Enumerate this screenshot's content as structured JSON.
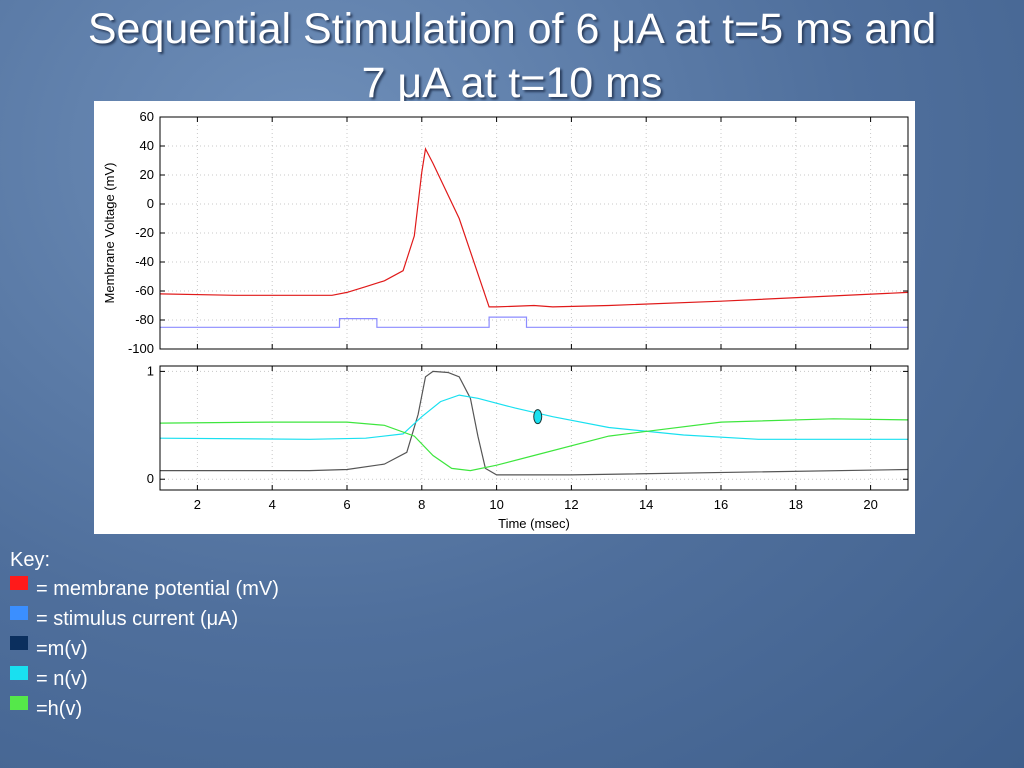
{
  "title": {
    "line1": "Sequential Stimulation of 6 μA at t=5 ms and",
    "line2": "7 μA at t=10 ms"
  },
  "key": {
    "heading": "Key:",
    "items": [
      {
        "label": "= membrane potential (mV)",
        "color": "#ff1a1a"
      },
      {
        "label": "= stimulus current (μA)",
        "color": "#3b8fff"
      },
      {
        "label": "=m(v)",
        "color": "#0b2f5e"
      },
      {
        "label": "= n(v)",
        "color": "#19e0f0"
      },
      {
        "label": "=h(v)",
        "color": "#55e84a"
      }
    ]
  },
  "chart_data": [
    {
      "type": "line",
      "ylabel": "Membrane Voltage (mV)",
      "xlim": [
        1,
        21
      ],
      "ylim": [
        -100,
        60
      ],
      "yticks": [
        60,
        40,
        20,
        0,
        -20,
        -40,
        -60,
        -80,
        -100
      ],
      "grid": true,
      "series": [
        {
          "color": "#e01a1a",
          "x": [
            1,
            3,
            5.6,
            6,
            6.5,
            7,
            7.5,
            7.8,
            8.0,
            8.1,
            8.3,
            9.0,
            9.8,
            10.0,
            11.0,
            11.5,
            13,
            16,
            21
          ],
          "y": [
            -62,
            -63,
            -63,
            -61,
            -57,
            -53,
            -46,
            -22,
            22,
            38,
            28,
            -10,
            -71,
            -71,
            -70,
            -71,
            -70,
            -67,
            -61
          ]
        },
        {
          "color": "#8c8cff",
          "x": [
            1,
            5.8,
            5.8,
            6.8,
            6.8,
            9.8,
            9.8,
            10.8,
            10.8,
            21
          ],
          "y": [
            -85,
            -85,
            -79,
            -79,
            -85,
            -85,
            -78,
            -78,
            -85,
            -85
          ]
        }
      ]
    },
    {
      "type": "line",
      "xlabel": "Time (msec)",
      "xlim": [
        1,
        21
      ],
      "ylim": [
        -0.1,
        1.05
      ],
      "xticks": [
        2,
        4,
        6,
        8,
        10,
        12,
        14,
        16,
        18,
        20
      ],
      "yticks": [
        1,
        0
      ],
      "grid": true,
      "series": [
        {
          "color": "#555555",
          "x": [
            1,
            5,
            6,
            7,
            7.6,
            7.9,
            8.1,
            8.3,
            8.7,
            9.0,
            9.3,
            9.5,
            9.7,
            10,
            12,
            21
          ],
          "y": [
            0.08,
            0.08,
            0.09,
            0.14,
            0.25,
            0.6,
            0.95,
            1.0,
            0.99,
            0.95,
            0.75,
            0.4,
            0.1,
            0.04,
            0.04,
            0.09
          ]
        },
        {
          "color": "#19e0f0",
          "x": [
            1,
            5,
            6.5,
            7.5,
            8.0,
            8.5,
            9.0,
            9.5,
            10.5,
            11.5,
            13,
            15,
            17,
            21
          ],
          "y": [
            0.38,
            0.37,
            0.38,
            0.42,
            0.58,
            0.72,
            0.78,
            0.75,
            0.66,
            0.58,
            0.48,
            0.41,
            0.37,
            0.37
          ]
        },
        {
          "color": "#3ee63e",
          "x": [
            1,
            4,
            6,
            7.0,
            7.8,
            8.3,
            8.8,
            9.3,
            10,
            11,
            13,
            16,
            19,
            21
          ],
          "y": [
            0.52,
            0.53,
            0.53,
            0.5,
            0.4,
            0.22,
            0.1,
            0.08,
            0.13,
            0.22,
            0.4,
            0.53,
            0.56,
            0.55
          ]
        }
      ]
    }
  ]
}
